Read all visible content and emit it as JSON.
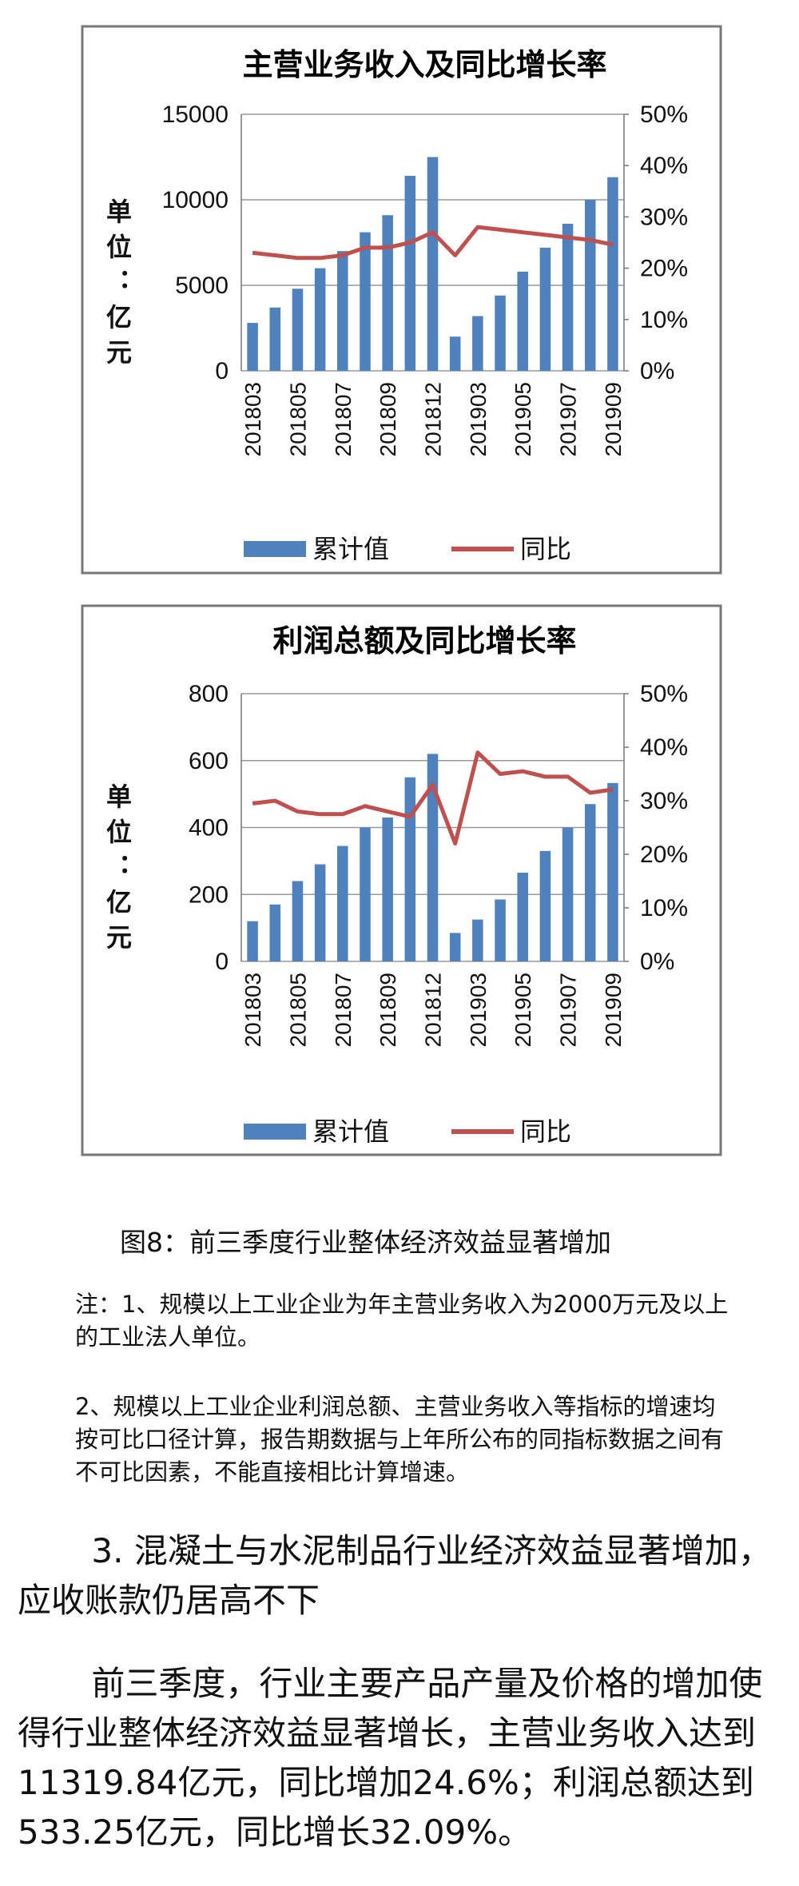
{
  "chart_data": [
    {
      "type": "bar-line",
      "title": "主营业务收入及同比增长率",
      "ylabel": "单位：亿元",
      "categories": [
        "201803",
        null,
        "201805",
        null,
        "201807",
        null,
        "201809",
        null,
        "201812",
        null,
        "201903",
        null,
        "201905",
        null,
        "201907",
        null,
        "201909"
      ],
      "series": [
        {
          "name": "累计值",
          "type": "bar",
          "color": "#4f81bd",
          "values": [
            2800,
            3700,
            4800,
            6000,
            7000,
            8100,
            9100,
            11400,
            12500,
            2000,
            3200,
            4400,
            5800,
            7200,
            8600,
            10000,
            11320
          ]
        },
        {
          "name": "同比",
          "type": "line",
          "axis": "y2",
          "color": "#c0504d",
          "values": [
            23,
            22.5,
            22,
            22,
            22.5,
            24,
            24,
            25,
            27,
            22.5,
            28,
            27.5,
            27,
            26.5,
            26,
            25.5,
            24.6
          ]
        }
      ],
      "ylim": [
        0,
        15000
      ],
      "yticks": [
        0,
        5000,
        10000,
        15000
      ],
      "y2lim": [
        0,
        50
      ],
      "y2ticks": [
        {
          "value": 0,
          "label": "0%"
        },
        {
          "value": 10,
          "label": "10%"
        },
        {
          "value": 20,
          "label": "20%"
        },
        {
          "value": 30,
          "label": "30%"
        },
        {
          "value": 40,
          "label": "40%"
        },
        {
          "value": 50,
          "label": "50%"
        }
      ],
      "grid": true,
      "legend": "bottom"
    },
    {
      "type": "bar-line",
      "title": "利润总额及同比增长率",
      "ylabel": "单位：亿元",
      "categories": [
        "201803",
        null,
        "201805",
        null,
        "201807",
        null,
        "201809",
        null,
        "201812",
        null,
        "201903",
        null,
        "201905",
        null,
        "201907",
        null,
        "201909"
      ],
      "series": [
        {
          "name": "累计值",
          "type": "bar",
          "color": "#4f81bd",
          "values": [
            120,
            170,
            240,
            290,
            345,
            400,
            430,
            550,
            620,
            85,
            125,
            185,
            265,
            330,
            400,
            470,
            533
          ]
        },
        {
          "name": "同比",
          "type": "line",
          "axis": "y2",
          "color": "#c0504d",
          "values": [
            29.5,
            30,
            28,
            27.5,
            27.5,
            29,
            28,
            27,
            33,
            22,
            39,
            35,
            35.5,
            34.5,
            34.5,
            31.5,
            32.1
          ]
        }
      ],
      "ylim": [
        0,
        800
      ],
      "yticks": [
        0,
        200,
        400,
        600,
        800
      ],
      "y2lim": [
        0,
        50
      ],
      "y2ticks": [
        {
          "value": 0,
          "label": "0%"
        },
        {
          "value": 10,
          "label": "10%"
        },
        {
          "value": 20,
          "label": "20%"
        },
        {
          "value": 30,
          "label": "30%"
        },
        {
          "value": 40,
          "label": "40%"
        },
        {
          "value": 50,
          "label": "50%"
        }
      ],
      "grid": true,
      "legend": "bottom"
    }
  ],
  "caption": "图8：前三季度行业整体经济效益显著增加",
  "notes": [
    "注：1、规模以上工业企业为年主营业务收入为2000万元及以上的工业法人单位。",
    "2、规模以上工业企业利润总额、主营业务收入等指标的增速均按可比口径计算，报告期数据与上年所公布的同指标数据之间有不可比因素，不能直接相比计算增速。"
  ],
  "paragraphs": [
    "3. 混凝土与水泥制品行业经济效益显著增加，应收账款仍居高不下",
    "前三季度，行业主要产品产量及价格的增加使得行业整体经济效益显著增长，主营业务收入达到11319.84亿元，同比增加24.6%；利润总额达到533.25亿元，同比增长32.09%。"
  ]
}
